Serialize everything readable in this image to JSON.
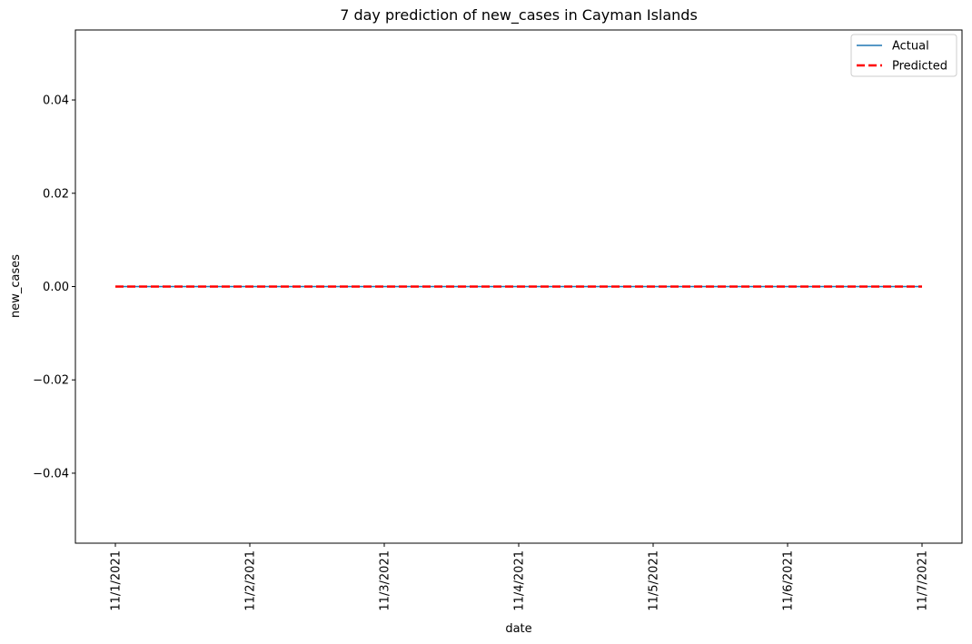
{
  "chart_data": {
    "type": "line",
    "title": "7 day prediction of new_cases in Cayman Islands",
    "xlabel": "date",
    "ylabel": "new_cases",
    "categories": [
      "11/1/2021",
      "11/2/2021",
      "11/3/2021",
      "11/4/2021",
      "11/5/2021",
      "11/6/2021",
      "11/7/2021"
    ],
    "ylim": [
      -0.055,
      0.055
    ],
    "yticks": [
      -0.04,
      -0.02,
      0.0,
      0.02,
      0.04
    ],
    "ytick_labels": [
      "−0.04",
      "−0.02",
      "0.00",
      "0.02",
      "0.04"
    ],
    "grid": false,
    "legend_position": "top-right",
    "series": [
      {
        "name": "Actual",
        "values": [
          0,
          0,
          0,
          0,
          0,
          0,
          0
        ],
        "color": "#1f77b4",
        "style": "solid"
      },
      {
        "name": "Predicted",
        "values": [
          0,
          0,
          0,
          0,
          0,
          0,
          0
        ],
        "color": "#ff0000",
        "style": "dashed"
      }
    ]
  }
}
